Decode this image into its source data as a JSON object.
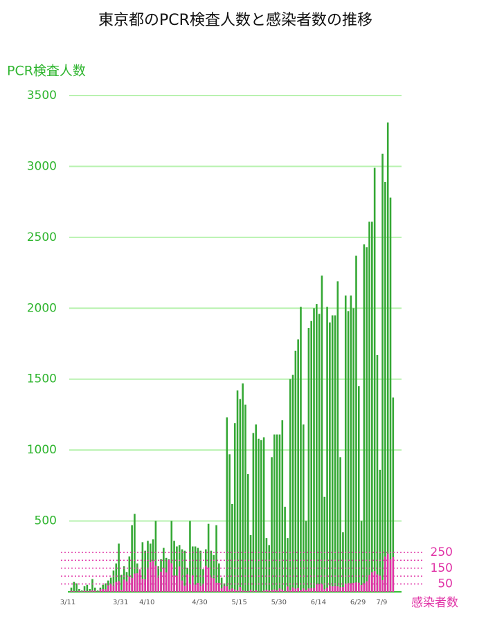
{
  "chart_data": {
    "type": "bar",
    "title": "東京都のPCR検査人数と感染者数の推移",
    "y_label": "PCR検査人数",
    "y2_label": "感染者数",
    "categories": [
      "3/11",
      null,
      null,
      null,
      null,
      null,
      null,
      null,
      null,
      null,
      null,
      null,
      null,
      null,
      null,
      null,
      null,
      null,
      null,
      null,
      "3/31",
      null,
      null,
      null,
      null,
      null,
      null,
      null,
      null,
      null,
      "4/10",
      null,
      null,
      null,
      null,
      null,
      null,
      null,
      null,
      null,
      null,
      null,
      null,
      null,
      null,
      null,
      null,
      null,
      null,
      null,
      "4/30",
      null,
      null,
      null,
      null,
      null,
      null,
      null,
      null,
      null,
      null,
      null,
      null,
      null,
      null,
      "5/15",
      null,
      null,
      null,
      null,
      null,
      null,
      null,
      null,
      null,
      null,
      null,
      null,
      null,
      null,
      "5/30",
      null,
      null,
      null,
      null,
      null,
      null,
      null,
      null,
      null,
      null,
      null,
      null,
      null,
      null,
      "6/14",
      null,
      null,
      null,
      null,
      null,
      null,
      null,
      null,
      null,
      null,
      null,
      null,
      null,
      null,
      "6/29",
      null,
      null,
      null,
      null,
      null,
      null,
      null,
      null,
      "7/9",
      null,
      null,
      null
    ],
    "series": [
      {
        "name": "PCR検査人数",
        "color": "#35a835",
        "axis": "y",
        "values": [
          30,
          70,
          60,
          20,
          10,
          40,
          50,
          20,
          90,
          30,
          10,
          30,
          50,
          60,
          80,
          100,
          150,
          200,
          340,
          120,
          180,
          140,
          250,
          470,
          550,
          200,
          120,
          350,
          290,
          360,
          340,
          370,
          500,
          180,
          230,
          310,
          240,
          230,
          500,
          360,
          320,
          330,
          300,
          290,
          170,
          500,
          320,
          320,
          310,
          290,
          160,
          300,
          480,
          290,
          260,
          470,
          200,
          100,
          60,
          1230,
          970,
          620,
          1190,
          1420,
          1360,
          1470,
          1320,
          830,
          400,
          1120,
          1180,
          1080,
          1070,
          1090,
          380,
          330,
          950,
          1110,
          1110,
          1110,
          1210,
          600,
          380,
          1500,
          1530,
          1700,
          1780,
          2010,
          1180,
          500,
          1860,
          1910,
          2000,
          2030,
          1960,
          2230,
          670,
          2010,
          1900,
          1950,
          1950,
          2190,
          950,
          420,
          2090,
          1980,
          2090,
          2000,
          2370,
          1450,
          500,
          2450,
          2430,
          2610,
          2610,
          2990,
          1670,
          860,
          3090,
          2890,
          3310,
          2780,
          1370
        ]
      },
      {
        "name": "感染者数",
        "color": "#e033a6",
        "axis": "y2",
        "values": [
          7,
          5,
          2,
          7,
          3,
          9,
          4,
          6,
          10,
          8,
          2,
          16,
          17,
          16,
          41,
          47,
          40,
          63,
          68,
          13,
          78,
          66,
          97,
          89,
          116,
          118,
          143,
          83,
          80,
          144,
          189,
          197,
          166,
          91,
          127,
          149,
          123,
          201,
          181,
          103,
          102,
          161,
          72,
          39,
          112,
          47,
          104,
          46,
          57,
          39,
          47,
          165,
          154,
          91,
          87,
          58,
          57,
          23,
          39,
          36,
          15,
          22,
          15,
          10,
          30,
          9,
          5,
          5,
          14,
          5,
          11,
          3,
          2,
          8,
          14,
          8,
          11,
          15,
          10,
          22,
          14,
          5,
          34,
          12,
          28,
          20,
          26,
          12,
          22,
          13,
          22,
          24,
          25,
          47,
          48,
          47,
          16,
          27,
          41,
          35,
          39,
          35,
          29,
          31,
          48,
          55,
          54,
          57,
          60,
          58,
          44,
          54,
          67,
          107,
          124,
          131,
          111,
          102,
          75,
          224,
          243,
          206,
          220
        ]
      }
    ],
    "ylim": [
      0,
      3500
    ],
    "yticks": [
      500,
      1000,
      1500,
      2000,
      2500,
      3000,
      3500
    ],
    "y2lim": [
      0,
      3145
    ],
    "y2ticks": [
      50,
      150,
      250
    ],
    "y2minor_ticks": [
      100,
      200
    ],
    "grid": true
  }
}
